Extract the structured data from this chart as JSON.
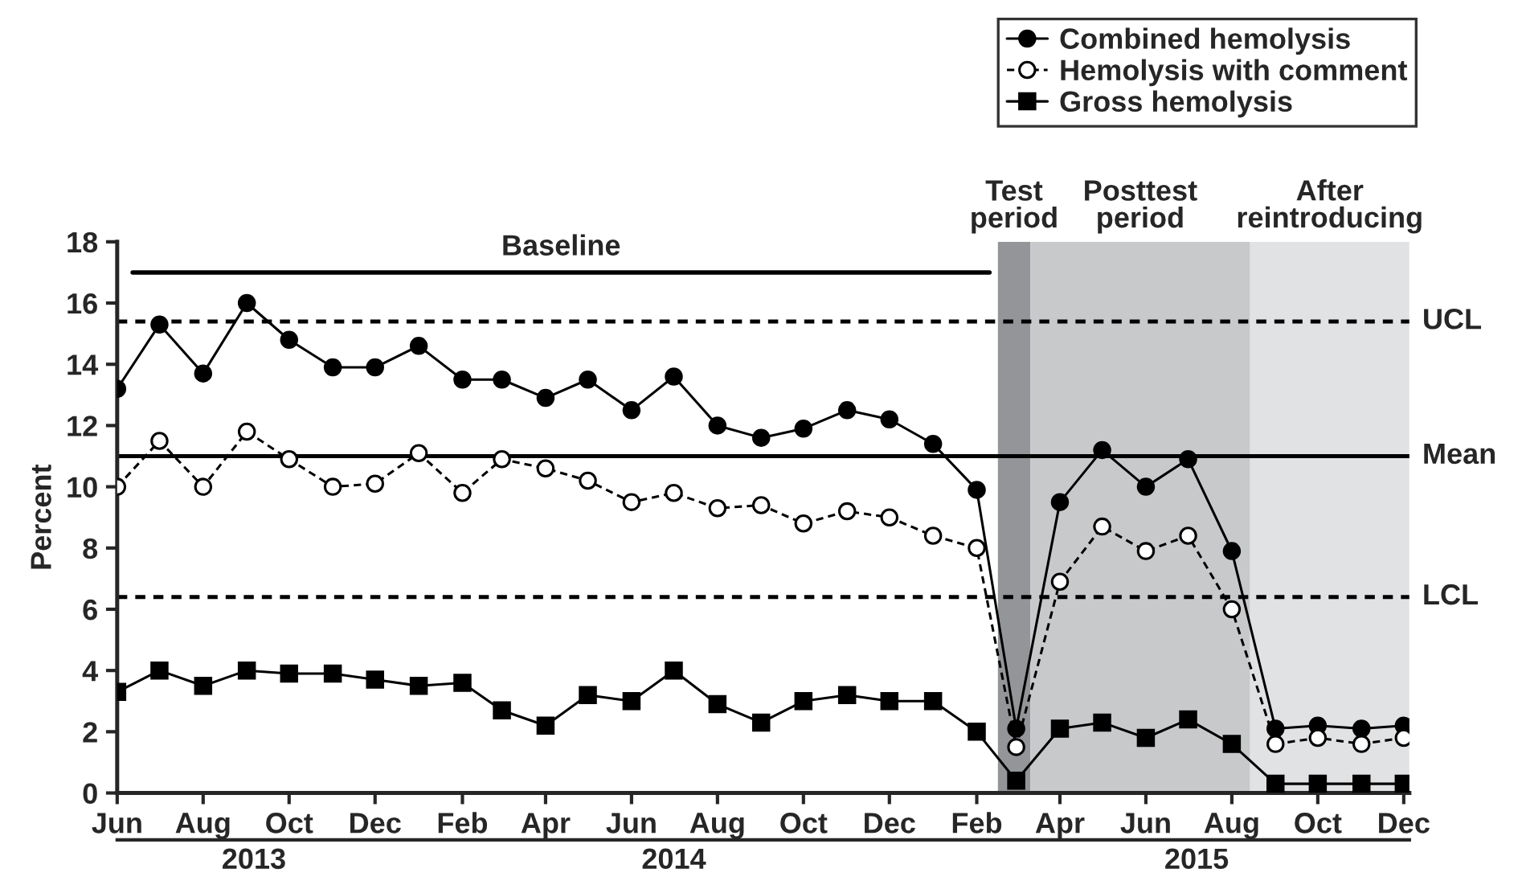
{
  "chart_data": {
    "type": "line",
    "ylabel": "Percent",
    "x": [
      "2013-06",
      "2013-07",
      "2013-08",
      "2013-09",
      "2013-10",
      "2013-11",
      "2013-12",
      "2014-01",
      "2014-02",
      "2014-03",
      "2014-04",
      "2014-05",
      "2014-06",
      "2014-07",
      "2014-08",
      "2014-09",
      "2014-10",
      "2014-11",
      "2014-12",
      "2015-01",
      "2015-02",
      "2015-03",
      "2015-04",
      "2015-05",
      "2015-06",
      "2015-07",
      "2015-08",
      "2015-09",
      "2015-10",
      "2015-11",
      "2015-12"
    ],
    "series": [
      {
        "name": "Combined hemolysis",
        "color": "#000000",
        "marker": "circle",
        "line_style": "solid",
        "values": [
          13.2,
          15.3,
          13.7,
          16.0,
          14.8,
          13.9,
          13.9,
          14.6,
          13.5,
          13.5,
          12.9,
          13.5,
          12.5,
          13.6,
          12.0,
          11.6,
          11.9,
          12.5,
          12.2,
          11.4,
          9.9,
          2.1,
          9.5,
          11.2,
          10.0,
          10.9,
          7.9,
          2.1,
          2.2,
          2.1,
          2.2
        ]
      },
      {
        "name": "Hemolysis with comment",
        "color": "#000000",
        "marker": "circle",
        "line_style": "dashed",
        "values": [
          10.0,
          11.5,
          10.0,
          11.8,
          10.9,
          10.0,
          10.1,
          11.1,
          9.8,
          10.9,
          10.6,
          10.2,
          9.5,
          9.8,
          9.3,
          9.4,
          8.8,
          9.2,
          9.0,
          8.4,
          8.0,
          1.5,
          6.9,
          8.7,
          7.9,
          8.4,
          6.0,
          1.6,
          1.8,
          1.6,
          1.8
        ]
      },
      {
        "type": "line",
        "color": "#000000",
        "marker": "none",
        "line_style": "solid",
        "x": [
          "2013-06-12",
          "2015-02-10"
        ],
        "values": [
          17.0,
          17.0
        ]
      },
      {
        "name": "Gross hemolysis",
        "color": "#000000",
        "marker": "square",
        "line_style": "solid",
        "values": [
          3.3,
          4.0,
          3.5,
          4.0,
          3.9,
          3.9,
          3.7,
          3.5,
          3.6,
          2.7,
          2.2,
          3.2,
          3.0,
          4.0,
          2.9,
          2.3,
          3.0,
          3.2,
          3.0,
          3.0,
          2.0,
          0.4,
          2.1,
          2.3,
          1.8,
          2.4,
          1.6,
          0.3,
          0.3,
          0.3,
          0.3
        ]
      }
    ],
    "xlim": [
      "2013-06-01",
      "2015-12-05"
    ],
    "xticks": [
      {
        "value": "2013-06",
        "label": "Jun"
      },
      {
        "value": "2013-08",
        "label": "Aug"
      },
      {
        "value": "2013-10",
        "label": "Oct"
      },
      {
        "value": "2013-12",
        "label": "Dec"
      },
      {
        "value": "2014-02",
        "label": "Feb"
      },
      {
        "value": "2014-04",
        "label": "Apr"
      },
      {
        "value": "2014-06",
        "label": "Jun"
      },
      {
        "value": "2014-08",
        "label": "Aug"
      },
      {
        "value": "2014-10",
        "label": "Oct"
      },
      {
        "value": "2014-12",
        "label": "Dec"
      },
      {
        "value": "2015-02",
        "label": "Feb"
      },
      {
        "value": "2015-04",
        "label": "Apr"
      },
      {
        "value": "2015-06",
        "label": "Jun"
      },
      {
        "value": "2015-08",
        "label": "Aug"
      },
      {
        "value": "2015-10",
        "label": "Oct"
      },
      {
        "value": "2015-12",
        "label": "Dec"
      }
    ],
    "x2lim": [
      "2013-06-01",
      "2015-12-05"
    ],
    "x2ticks": [
      {
        "value": "2013-09-06",
        "label": "2013"
      },
      {
        "value": "2014-07-01",
        "label": "2014"
      },
      {
        "value": "2015-07-07",
        "label": "2015"
      }
    ],
    "ylim": [
      0,
      18
    ],
    "yticks": [
      0,
      2,
      4,
      6,
      8,
      10,
      12,
      14,
      16,
      18
    ],
    "ref_lines": [
      {
        "axis": "y",
        "value": 15.4,
        "label": "UCL",
        "line_style": "dashed",
        "color": "#000000"
      },
      {
        "axis": "y",
        "value": 11.0,
        "label": "Mean",
        "line_style": "solid",
        "color": "#000000"
      },
      {
        "axis": "y",
        "value": 6.4,
        "label": "LCL",
        "line_style": "dashed",
        "color": "#000000"
      }
    ],
    "bands": [
      {
        "axis": "x",
        "from": "2015-02-16",
        "to": "2015-03-11",
        "label": "Test\nperiod",
        "color": "#939598"
      },
      {
        "axis": "x",
        "from": "2015-03-11",
        "to": "2015-08-14",
        "label": "Posttest\nperiod",
        "color": "#c8c9cb"
      },
      {
        "axis": "x",
        "from": "2015-08-14",
        "to": "2015-12-05",
        "label": "After\nreintroducing",
        "color": "#e1e2e4"
      }
    ],
    "annotations": [
      {
        "text": "Baseline",
        "x": "2014-04-12",
        "y": 17.0
      }
    ],
    "grid": false,
    "legend": "top right"
  }
}
